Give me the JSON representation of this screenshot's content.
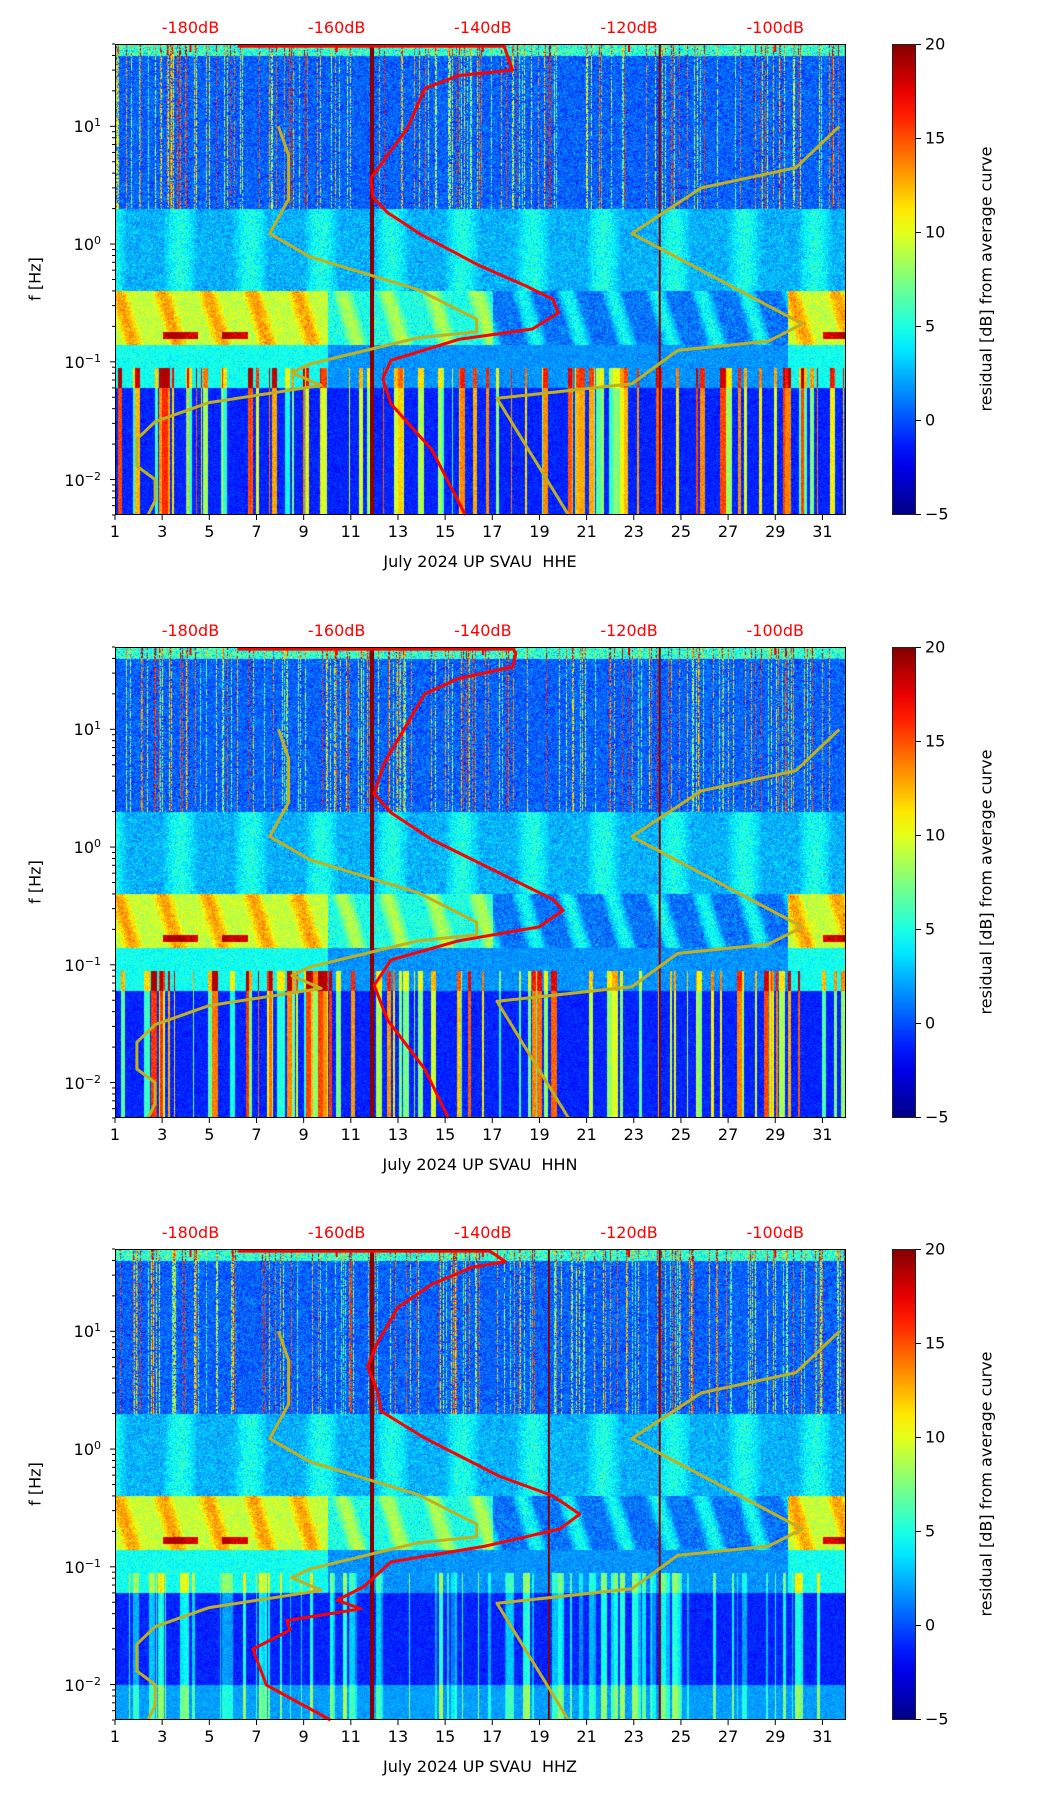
{
  "colors": {
    "mean_curve": "#ff0000",
    "model_curves": "#c0b020",
    "top_axis_text": "#ff0000",
    "event_line": "#8b0000"
  },
  "chart_data": [
    {
      "type": "heatmap",
      "title": "",
      "xlabel": "July 2024 UP SVAU  HHE",
      "ylabel": "f [Hz]",
      "xlim": [
        1,
        32
      ],
      "ylim": [
        0.005,
        50
      ],
      "yscale": "log",
      "x_ticks": [
        "1",
        "3",
        "5",
        "7",
        "9",
        "11",
        "13",
        "15",
        "17",
        "19",
        "21",
        "23",
        "25",
        "27",
        "29",
        "31"
      ],
      "y_ticks": [
        {
          "value": 10,
          "base": "10",
          "exp": "1"
        },
        {
          "value": 1,
          "base": "10",
          "exp": "0"
        },
        {
          "value": 0.1,
          "base": "10",
          "exp": "−1"
        },
        {
          "value": 0.01,
          "base": "10",
          "exp": "−2"
        }
      ],
      "top_axis": {
        "ticks": [
          "-180dB",
          "-160dB",
          "-140dB",
          "-120dB",
          "-100dB"
        ],
        "day_positions": [
          4.2,
          10.4,
          16.6,
          22.8,
          29.0
        ]
      },
      "colorbar": {
        "label": "residual [dB] from average curve",
        "range": [
          -5,
          20
        ],
        "ticks": [
          "20",
          "15",
          "10",
          "5",
          "0",
          "−5"
        ],
        "tick_values": [
          20,
          15,
          10,
          5,
          0,
          -5
        ],
        "colormap": "jet"
      },
      "event_lines_days": [
        11.9,
        24.1
      ],
      "series": [
        {
          "name": "mean PSD curve",
          "color": "#ff0000",
          "points": [
            [
              6.2,
              48
            ],
            [
              17.5,
              48
            ],
            [
              17.86,
              30
            ],
            [
              15.57,
              27
            ],
            [
              14.14,
              21
            ],
            [
              13.4,
              9.6
            ],
            [
              12.56,
              5.7
            ],
            [
              11.85,
              3.6
            ],
            [
              11.94,
              2.5
            ],
            [
              12.56,
              1.85
            ],
            [
              13.99,
              1.2
            ],
            [
              16.43,
              0.66
            ],
            [
              18.43,
              0.44
            ],
            [
              19.57,
              0.34
            ],
            [
              19.8,
              0.26
            ],
            [
              18.7,
              0.19
            ],
            [
              15.57,
              0.155
            ],
            [
              12.7,
              0.103
            ],
            [
              12.36,
              0.072
            ],
            [
              12.7,
              0.044
            ],
            [
              14.43,
              0.018
            ],
            [
              15.86,
              0.005
            ]
          ]
        },
        {
          "name": "low noise model",
          "color": "#c0b020",
          "points": [
            [
              7.93,
              10
            ],
            [
              8.36,
              5.7
            ],
            [
              8.36,
              2.4
            ],
            [
              7.56,
              1.23
            ],
            [
              9.27,
              0.78
            ],
            [
              13.85,
              0.41
            ],
            [
              16.34,
              0.23
            ],
            [
              16.34,
              0.18
            ],
            [
              13.85,
              0.16
            ],
            [
              9.27,
              0.096
            ],
            [
              8.5,
              0.081
            ],
            [
              9.74,
              0.063
            ],
            [
              4.99,
              0.045
            ],
            [
              2.7,
              0.031
            ],
            [
              1.93,
              0.022
            ],
            [
              1.93,
              0.013
            ],
            [
              2.7,
              0.01
            ],
            [
              2.7,
              0.0066
            ],
            [
              2.4,
              0.005
            ]
          ]
        },
        {
          "name": "high noise model",
          "color": "#c0b020",
          "points": [
            [
              31.72,
              10
            ],
            [
              29.87,
              4.45
            ],
            [
              25.86,
              3.0
            ],
            [
              22.92,
              1.23
            ],
            [
              30.15,
              0.21
            ],
            [
              28.72,
              0.15
            ],
            [
              24.86,
              0.125
            ],
            [
              22.92,
              0.065
            ],
            [
              17.2,
              0.049
            ],
            [
              20.23,
              0.005
            ]
          ]
        }
      ]
    },
    {
      "type": "heatmap",
      "title": "",
      "xlabel": "July 2024 UP SVAU  HHN",
      "ylabel": "f [Hz]",
      "xlim": [
        1,
        32
      ],
      "ylim": [
        0.005,
        50
      ],
      "yscale": "log",
      "x_ticks": [
        "1",
        "3",
        "5",
        "7",
        "9",
        "11",
        "13",
        "15",
        "17",
        "19",
        "21",
        "23",
        "25",
        "27",
        "29",
        "31"
      ],
      "y_ticks": [
        {
          "value": 10,
          "base": "10",
          "exp": "1"
        },
        {
          "value": 1,
          "base": "10",
          "exp": "0"
        },
        {
          "value": 0.1,
          "base": "10",
          "exp": "−1"
        },
        {
          "value": 0.01,
          "base": "10",
          "exp": "−2"
        }
      ],
      "top_axis": {
        "ticks": [
          "-180dB",
          "-160dB",
          "-140dB",
          "-120dB",
          "-100dB"
        ],
        "day_positions": [
          4.2,
          10.4,
          16.6,
          22.8,
          29.0
        ]
      },
      "colorbar": {
        "label": "residual [dB] from average curve",
        "range": [
          -5,
          20
        ],
        "ticks": [
          "20",
          "15",
          "10",
          "5",
          "0",
          "−5"
        ],
        "tick_values": [
          20,
          15,
          10,
          5,
          0,
          -5
        ],
        "colormap": "jet"
      },
      "event_lines_days": [
        11.9,
        24.1
      ],
      "series": [
        {
          "name": "mean PSD curve",
          "color": "#ff0000",
          "points": [
            [
              6.2,
              48
            ],
            [
              17.9,
              48
            ],
            [
              18.0,
              44
            ],
            [
              17.86,
              33.9
            ],
            [
              15.57,
              27
            ],
            [
              14.14,
              20
            ],
            [
              13.28,
              10.2
            ],
            [
              12.42,
              5.2
            ],
            [
              11.99,
              2.85
            ],
            [
              12.7,
              1.96
            ],
            [
              14.43,
              1.16
            ],
            [
              17.86,
              0.53
            ],
            [
              19.57,
              0.36
            ],
            [
              20.0,
              0.29
            ],
            [
              18.98,
              0.21
            ],
            [
              15.57,
              0.16
            ],
            [
              12.7,
              0.11
            ],
            [
              11.99,
              0.067
            ],
            [
              12.56,
              0.034
            ],
            [
              14.14,
              0.013
            ],
            [
              15.14,
              0.005
            ]
          ]
        },
        {
          "name": "low noise model",
          "color": "#c0b020",
          "points": [
            [
              7.93,
              10
            ],
            [
              8.36,
              5.7
            ],
            [
              8.36,
              2.4
            ],
            [
              7.56,
              1.23
            ],
            [
              9.27,
              0.78
            ],
            [
              13.85,
              0.41
            ],
            [
              16.34,
              0.23
            ],
            [
              16.34,
              0.18
            ],
            [
              13.85,
              0.16
            ],
            [
              9.27,
              0.096
            ],
            [
              8.5,
              0.081
            ],
            [
              9.74,
              0.063
            ],
            [
              4.99,
              0.045
            ],
            [
              2.7,
              0.031
            ],
            [
              1.93,
              0.022
            ],
            [
              1.93,
              0.013
            ],
            [
              2.7,
              0.01
            ],
            [
              2.7,
              0.0066
            ],
            [
              2.4,
              0.005
            ]
          ]
        },
        {
          "name": "high noise model",
          "color": "#c0b020",
          "points": [
            [
              31.72,
              10
            ],
            [
              29.87,
              4.45
            ],
            [
              25.86,
              3.0
            ],
            [
              22.92,
              1.23
            ],
            [
              30.15,
              0.21
            ],
            [
              28.72,
              0.15
            ],
            [
              24.86,
              0.125
            ],
            [
              22.92,
              0.065
            ],
            [
              17.2,
              0.049
            ],
            [
              20.23,
              0.005
            ]
          ]
        }
      ]
    },
    {
      "type": "heatmap",
      "title": "",
      "xlabel": "July 2024 UP SVAU  HHZ",
      "ylabel": "f [Hz]",
      "xlim": [
        1,
        32
      ],
      "ylim": [
        0.005,
        50
      ],
      "yscale": "log",
      "x_ticks": [
        "1",
        "3",
        "5",
        "7",
        "9",
        "11",
        "13",
        "15",
        "17",
        "19",
        "21",
        "23",
        "25",
        "27",
        "29",
        "31"
      ],
      "y_ticks": [
        {
          "value": 10,
          "base": "10",
          "exp": "1"
        },
        {
          "value": 1,
          "base": "10",
          "exp": "0"
        },
        {
          "value": 0.1,
          "base": "10",
          "exp": "−1"
        },
        {
          "value": 0.01,
          "base": "10",
          "exp": "−2"
        }
      ],
      "top_axis": {
        "ticks": [
          "-180dB",
          "-160dB",
          "-140dB",
          "-120dB",
          "-100dB"
        ],
        "day_positions": [
          4.2,
          10.4,
          16.6,
          22.8,
          29.0
        ]
      },
      "colorbar": {
        "label": "residual [dB] from average curve",
        "range": [
          -5,
          20
        ],
        "ticks": [
          "20",
          "15",
          "10",
          "5",
          "0",
          "−5"
        ],
        "tick_values": [
          20,
          15,
          10,
          5,
          0,
          -5
        ],
        "colormap": "jet"
      },
      "event_lines_days": [
        11.9,
        19.4,
        24.1
      ],
      "series": [
        {
          "name": "mean PSD curve",
          "color": "#ff0000",
          "points": [
            [
              6.2,
              48
            ],
            [
              16.9,
              48
            ],
            [
              17.56,
              39
            ],
            [
              16.14,
              35
            ],
            [
              14.43,
              25
            ],
            [
              13.0,
              16
            ],
            [
              12.14,
              8.1
            ],
            [
              11.71,
              5.0
            ],
            [
              12.14,
              3.07
            ],
            [
              12.28,
              2.1
            ],
            [
              14.14,
              1.24
            ],
            [
              17.28,
              0.59
            ],
            [
              19.57,
              0.4
            ],
            [
              20.71,
              0.28
            ],
            [
              19.86,
              0.21
            ],
            [
              16.71,
              0.15
            ],
            [
              12.7,
              0.11
            ],
            [
              11.56,
              0.068
            ],
            [
              10.42,
              0.052
            ],
            [
              11.42,
              0.044
            ],
            [
              8.28,
              0.035
            ],
            [
              8.42,
              0.029
            ],
            [
              6.85,
              0.02
            ],
            [
              7.42,
              0.0099
            ],
            [
              10.14,
              0.005
            ]
          ]
        },
        {
          "name": "low noise model",
          "color": "#c0b020",
          "points": [
            [
              7.93,
              10
            ],
            [
              8.36,
              5.7
            ],
            [
              8.36,
              2.4
            ],
            [
              7.56,
              1.23
            ],
            [
              9.27,
              0.78
            ],
            [
              13.85,
              0.41
            ],
            [
              16.34,
              0.23
            ],
            [
              16.34,
              0.18
            ],
            [
              13.85,
              0.16
            ],
            [
              9.27,
              0.096
            ],
            [
              8.5,
              0.081
            ],
            [
              9.74,
              0.063
            ],
            [
              4.99,
              0.045
            ],
            [
              2.7,
              0.031
            ],
            [
              1.93,
              0.022
            ],
            [
              1.93,
              0.013
            ],
            [
              2.7,
              0.01
            ],
            [
              2.7,
              0.0066
            ],
            [
              2.4,
              0.005
            ]
          ]
        },
        {
          "name": "high noise model",
          "color": "#c0b020",
          "points": [
            [
              31.72,
              10
            ],
            [
              29.87,
              4.45
            ],
            [
              25.86,
              3.0
            ],
            [
              22.92,
              1.23
            ],
            [
              30.15,
              0.21
            ],
            [
              28.72,
              0.15
            ],
            [
              24.86,
              0.125
            ],
            [
              22.92,
              0.065
            ],
            [
              17.2,
              0.049
            ],
            [
              20.23,
              0.005
            ]
          ]
        }
      ]
    }
  ]
}
